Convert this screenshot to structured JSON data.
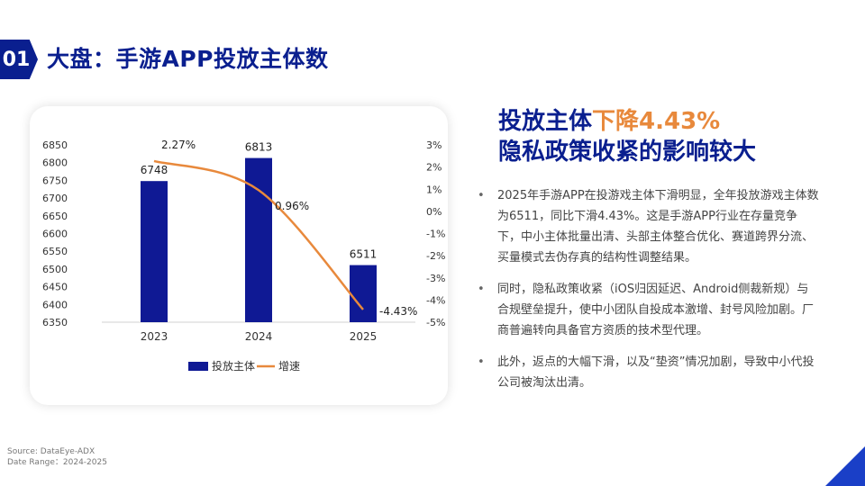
{
  "header": {
    "number": "01",
    "title": "大盘：手游APP投放主体数"
  },
  "headline": {
    "line1_prefix": "投放主体",
    "line1_highlight": "下降4.43%",
    "line2": "隐私政策收紧的影响较大"
  },
  "bullets": [
    "2025年手游APP在投游戏主体下滑明显，全年投放游戏主体数为6511，同比下滑4.43%。这是手游APP行业在存量竞争下，中小主体批量出清、头部主体整合优化、赛道跨界分流、买量模式去伪存真的结构性调整结果。",
    "同时，隐私政策收紧（iOS归因延迟、Android侧裁新规）与合规壁垒提升，使中小团队自投成本激增、封号风险加剧。厂商普遍转向具备官方资质的技术型代理。",
    "此外，返点的大幅下滑，以及“垫资”情况加剧，导致中小代投公司被淘汰出清。"
  ],
  "source": {
    "line1": "Source: DataEye-ADX",
    "line2": "Date Range：2024-2025"
  },
  "colors": {
    "brand": "#0a1f8f",
    "bar": "#0f1994",
    "line": "#e8893c",
    "accent": "#1a3fc7"
  },
  "chart_data": {
    "type": "bar",
    "categories": [
      "2023",
      "2024",
      "2025"
    ],
    "series": [
      {
        "name": "投放主体",
        "type": "bar",
        "axis": "left",
        "values": [
          6748,
          6813,
          6511
        ],
        "labels": [
          "6748",
          "6813",
          "6511"
        ]
      },
      {
        "name": "增速",
        "type": "line",
        "axis": "right",
        "values": [
          2.27,
          0.96,
          -4.43
        ],
        "labels": [
          "2.27%",
          "0.96%",
          "-4.43%"
        ]
      }
    ],
    "y_left": {
      "min": 6350,
      "max": 6850,
      "ticks": [
        "6850",
        "6800",
        "6750",
        "6700",
        "6650",
        "6600",
        "6550",
        "6500",
        "6450",
        "6400",
        "6350"
      ]
    },
    "y_right": {
      "min": -5,
      "max": 3,
      "ticks": [
        "3%",
        "2%",
        "1%",
        "0%",
        "-1%",
        "-2%",
        "-3%",
        "-4%",
        "-5%"
      ]
    },
    "legend": {
      "position": "bottom"
    },
    "grid": false
  }
}
